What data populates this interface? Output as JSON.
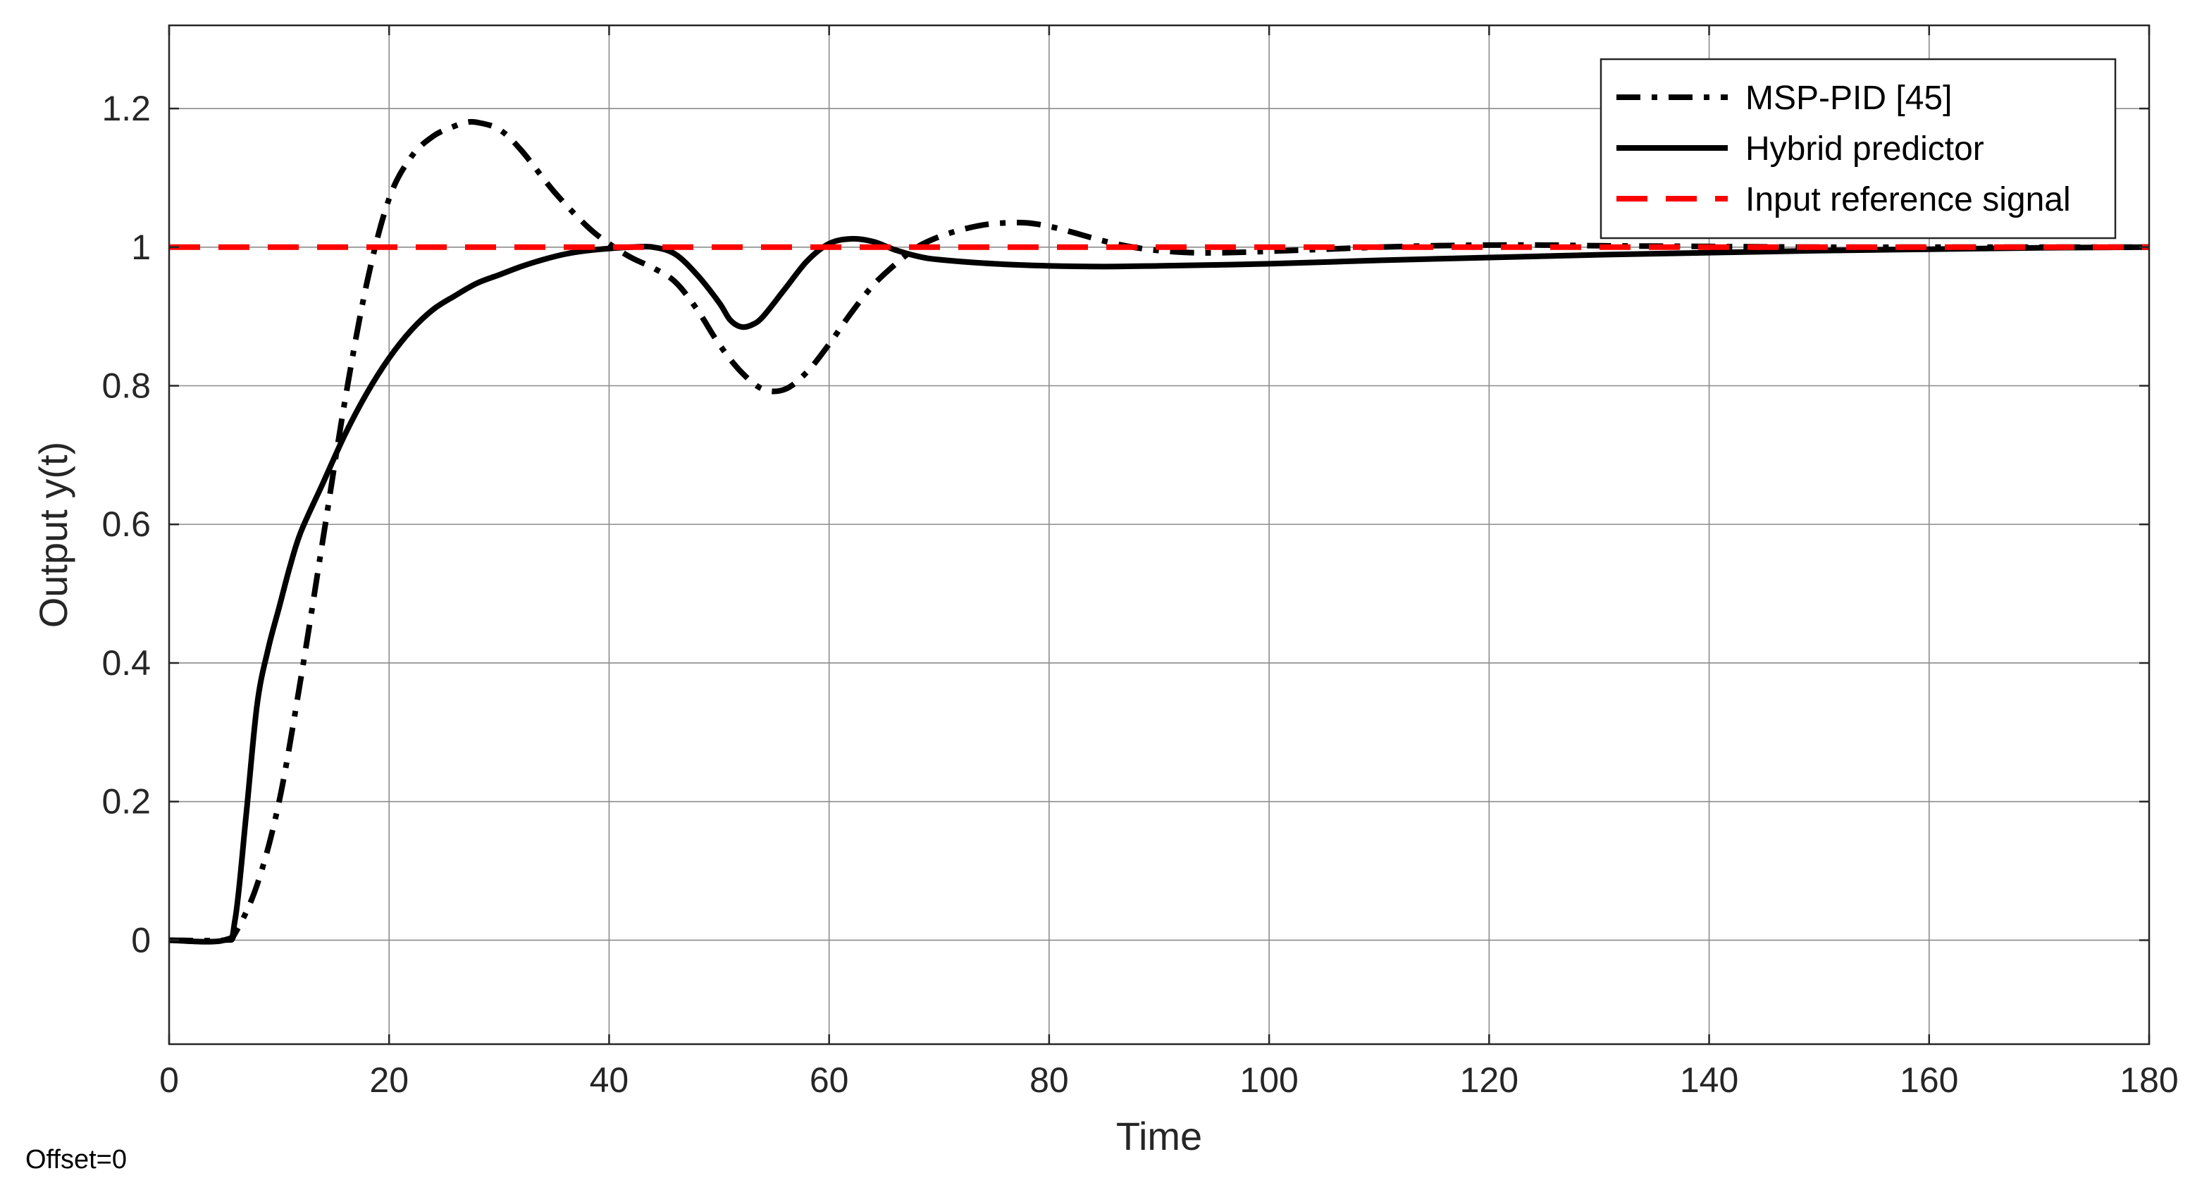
{
  "chart_data": {
    "type": "line",
    "xlabel": "Time",
    "ylabel": "Output y(t)",
    "xlim": [
      0,
      180
    ],
    "ylim": [
      -0.15,
      1.32
    ],
    "x_ticks": [
      0,
      20,
      40,
      60,
      80,
      100,
      120,
      140,
      160,
      180
    ],
    "y_ticks": [
      0,
      0.2,
      0.4,
      0.6,
      0.8,
      1,
      1.2
    ],
    "x_tick_labels": [
      "0",
      "20",
      "40",
      "60",
      "80",
      "100",
      "120",
      "140",
      "160",
      "180"
    ],
    "y_tick_labels": [
      "0",
      "0.2",
      "0.4",
      "0.6",
      "0.8",
      "1",
      "1.2"
    ],
    "grid": true,
    "legend_position": "top-right",
    "series": [
      {
        "name": "MSP-PID [45]",
        "style": "dashdot",
        "color": "#000000",
        "x": [
          0,
          5,
          6,
          8,
          10,
          12,
          14,
          16,
          18,
          20,
          22,
          24,
          26,
          27,
          28,
          30,
          32,
          35,
          38,
          40,
          42,
          44,
          46,
          48,
          50,
          52,
          54,
          56,
          58,
          60,
          62,
          64,
          66,
          68,
          70,
          72,
          74,
          76,
          78,
          80,
          82,
          84,
          86,
          88,
          90,
          93,
          96,
          100,
          105,
          110,
          115,
          120,
          125,
          130,
          140,
          150,
          160,
          170,
          180
        ],
        "y": [
          0,
          0,
          0.01,
          0.08,
          0.2,
          0.38,
          0.58,
          0.78,
          0.95,
          1.07,
          1.13,
          1.16,
          1.175,
          1.18,
          1.18,
          1.17,
          1.14,
          1.08,
          1.03,
          1.005,
          0.985,
          0.97,
          0.95,
          0.91,
          0.86,
          0.82,
          0.795,
          0.795,
          0.82,
          0.86,
          0.905,
          0.945,
          0.975,
          1.0,
          1.015,
          1.025,
          1.032,
          1.035,
          1.035,
          1.03,
          1.022,
          1.013,
          1.005,
          0.999,
          0.995,
          0.992,
          0.992,
          0.994,
          0.997,
          1.0,
          1.002,
          1.003,
          1.003,
          1.002,
          1.001,
          1.0,
          1.0,
          1.0,
          1.0
        ]
      },
      {
        "name": "Hybrid predictor",
        "style": "solid",
        "color": "#000000",
        "x": [
          0,
          5,
          6,
          7,
          8,
          9,
          10,
          11,
          12,
          14,
          16,
          18,
          20,
          22,
          24,
          26,
          28,
          30,
          32,
          34,
          36,
          38,
          40,
          42,
          44,
          46,
          48,
          50,
          51,
          52,
          53,
          54,
          56,
          58,
          60,
          62,
          64,
          66,
          68,
          70,
          75,
          80,
          85,
          90,
          100,
          110,
          120,
          130,
          140,
          150,
          160,
          170,
          180
        ],
        "y": [
          0,
          0,
          0.03,
          0.18,
          0.34,
          0.42,
          0.48,
          0.54,
          0.59,
          0.66,
          0.73,
          0.79,
          0.84,
          0.88,
          0.91,
          0.93,
          0.948,
          0.96,
          0.972,
          0.982,
          0.99,
          0.995,
          0.998,
          1.0,
          1.0,
          0.99,
          0.96,
          0.92,
          0.895,
          0.885,
          0.888,
          0.9,
          0.94,
          0.98,
          1.005,
          1.012,
          1.008,
          0.996,
          0.987,
          0.982,
          0.976,
          0.973,
          0.972,
          0.973,
          0.976,
          0.981,
          0.985,
          0.989,
          0.992,
          0.995,
          0.997,
          0.999,
          1.0
        ]
      },
      {
        "name": "Input reference signal",
        "style": "dashed",
        "color": "#ff0000",
        "x": [
          0,
          180
        ],
        "y": [
          1,
          1
        ]
      }
    ]
  },
  "annotations": {
    "offset": "Offset=0"
  }
}
